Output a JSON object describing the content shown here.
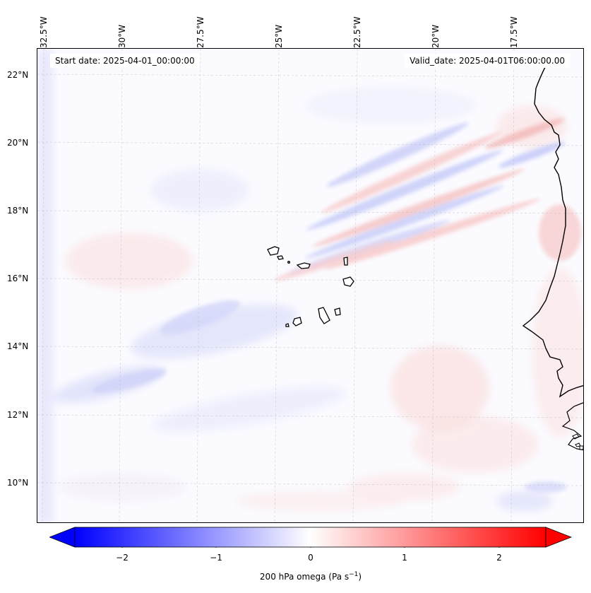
{
  "header": {
    "start_date": "Start date: 2025-04-01_00:00:00",
    "valid_date": "Valid_date: 2025-04-01T06:00:00.00"
  },
  "axes": {
    "lon_labels": [
      "32.5°W",
      "30°W",
      "27.5°W",
      "25°W",
      "22.5°W",
      "20°W",
      "17.5°W"
    ],
    "lat_labels": [
      "22°N",
      "20°N",
      "18°N",
      "16°N",
      "14°N",
      "12°N",
      "10°N"
    ],
    "lon_values": [
      -32.5,
      -30,
      -27.5,
      -25,
      -22.5,
      -20,
      -17.5
    ],
    "lat_values": [
      22,
      20,
      18,
      16,
      14,
      12,
      10
    ],
    "lon_range": [
      -33.3,
      -16.3
    ],
    "lat_range": [
      8.9,
      22.8
    ],
    "gridlines": true
  },
  "colorbar": {
    "label": "200 hPa omega (Pa s",
    "label_unit_exponent": "−1",
    "label_close": ")",
    "ticks": [
      "−2",
      "−1",
      "0",
      "1",
      "2"
    ],
    "tick_values": [
      -2,
      -1,
      0,
      1,
      2
    ],
    "range": [
      -2.5,
      2.5
    ],
    "extend": "both",
    "colormap": "bwr",
    "negative_color": "#0000ff",
    "positive_color": "#ff0000",
    "neutral_color": "#ffffff"
  },
  "map": {
    "variable": "200 hPa omega",
    "coastline_color": "#000000",
    "region": "Cape Verde islands and West African coast"
  }
}
